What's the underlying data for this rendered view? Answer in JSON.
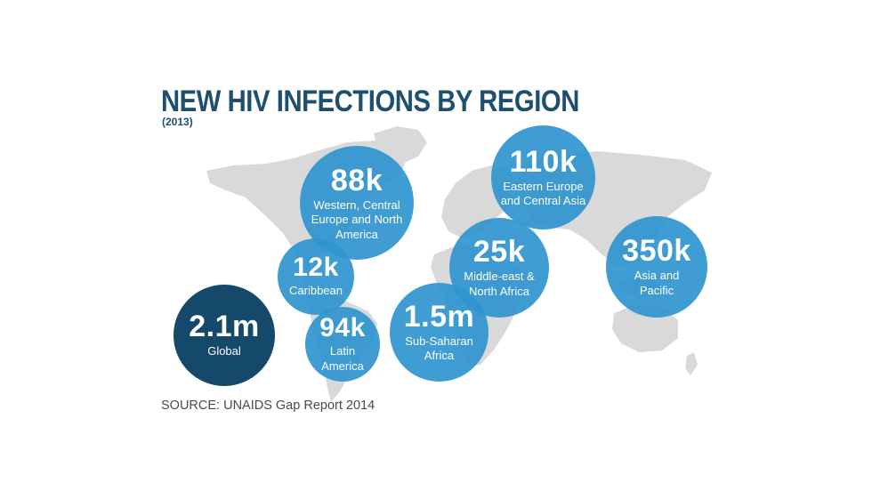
{
  "title": "NEW HIV INFECTIONS BY REGION",
  "subtitle": "(2013)",
  "source": "SOURCE: UNAIDS Gap Report 2014",
  "colors": {
    "title": "#1d4f6f",
    "bubble": "#2f95d0",
    "global_bubble": "#15496b",
    "map": "#d9d9d9"
  },
  "regions": [
    {
      "id": "western-europe-north-america",
      "value": "88k",
      "label": "Western, Central Europe and North America"
    },
    {
      "id": "eastern-europe-central-asia",
      "value": "110k",
      "label": "Eastern Europe and Central Asia"
    },
    {
      "id": "asia-pacific",
      "value": "350k",
      "label": "Asia and Pacific"
    },
    {
      "id": "caribbean",
      "value": "12k",
      "label": "Caribbean"
    },
    {
      "id": "middle-east-north-africa",
      "value": "25k",
      "label": "Middle-east & North Africa"
    },
    {
      "id": "global",
      "value": "2.1m",
      "label": "Global"
    },
    {
      "id": "latin-america",
      "value": "94k",
      "label": "Latin America"
    },
    {
      "id": "sub-saharan-africa",
      "value": "1.5m",
      "label": "Sub-Saharan Africa"
    }
  ]
}
